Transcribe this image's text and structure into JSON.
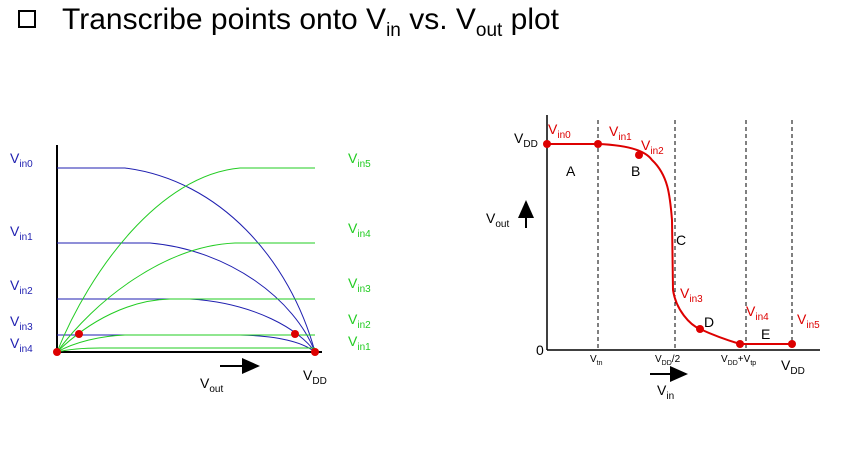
{
  "slide": {
    "title_main": "Transcribe points onto V",
    "title_sub1": "in",
    "title_mid": " vs. V",
    "title_sub2": "out",
    "title_end": " plot"
  },
  "left_plot": {
    "nmos_labels": [
      {
        "main": "V",
        "sub": "in0"
      },
      {
        "main": "V",
        "sub": "in1"
      },
      {
        "main": "V",
        "sub": "in2"
      },
      {
        "main": "V",
        "sub": "in3"
      },
      {
        "main": "V",
        "sub": "in4"
      }
    ],
    "pmos_labels": [
      {
        "main": "V",
        "sub": "in5"
      },
      {
        "main": "V",
        "sub": "in4"
      },
      {
        "main": "V",
        "sub": "in3"
      },
      {
        "main": "V",
        "sub": "in2"
      },
      {
        "main": "V",
        "sub": "in1"
      }
    ],
    "x_label": {
      "main": "V",
      "sub": "out"
    },
    "vdd_label": {
      "main": "V",
      "sub": "DD"
    },
    "colors": {
      "nmos": "#1f1fb0",
      "pmos": "#22cc22",
      "points": "#dd0000"
    }
  },
  "right_plot": {
    "y_label": {
      "main": "V",
      "sub": "out"
    },
    "x_label": {
      "main": "V",
      "sub": "in"
    },
    "vdd_y": {
      "main": "V",
      "sub": "DD"
    },
    "zero": "0",
    "x_ticks": [
      {
        "main": "V",
        "sub": "tn",
        "tail": ""
      },
      {
        "main": "V",
        "sub": "DD",
        "tail": "/2"
      },
      {
        "main": "V",
        "sub": "DD",
        "tail": "+V",
        "sub2": "tp"
      }
    ],
    "x_vdd": {
      "main": "V",
      "sub": "DD"
    },
    "regions": [
      "A",
      "B",
      "C",
      "D",
      "E"
    ],
    "point_labels": [
      {
        "main": "V",
        "sub": "in0"
      },
      {
        "main": "V",
        "sub": "in1"
      },
      {
        "main": "V",
        "sub": "in2"
      },
      {
        "main": "V",
        "sub": "in3"
      },
      {
        "main": "V",
        "sub": "in4"
      },
      {
        "main": "V",
        "sub": "in5"
      }
    ],
    "colors": {
      "curve": "#dd0000"
    }
  }
}
